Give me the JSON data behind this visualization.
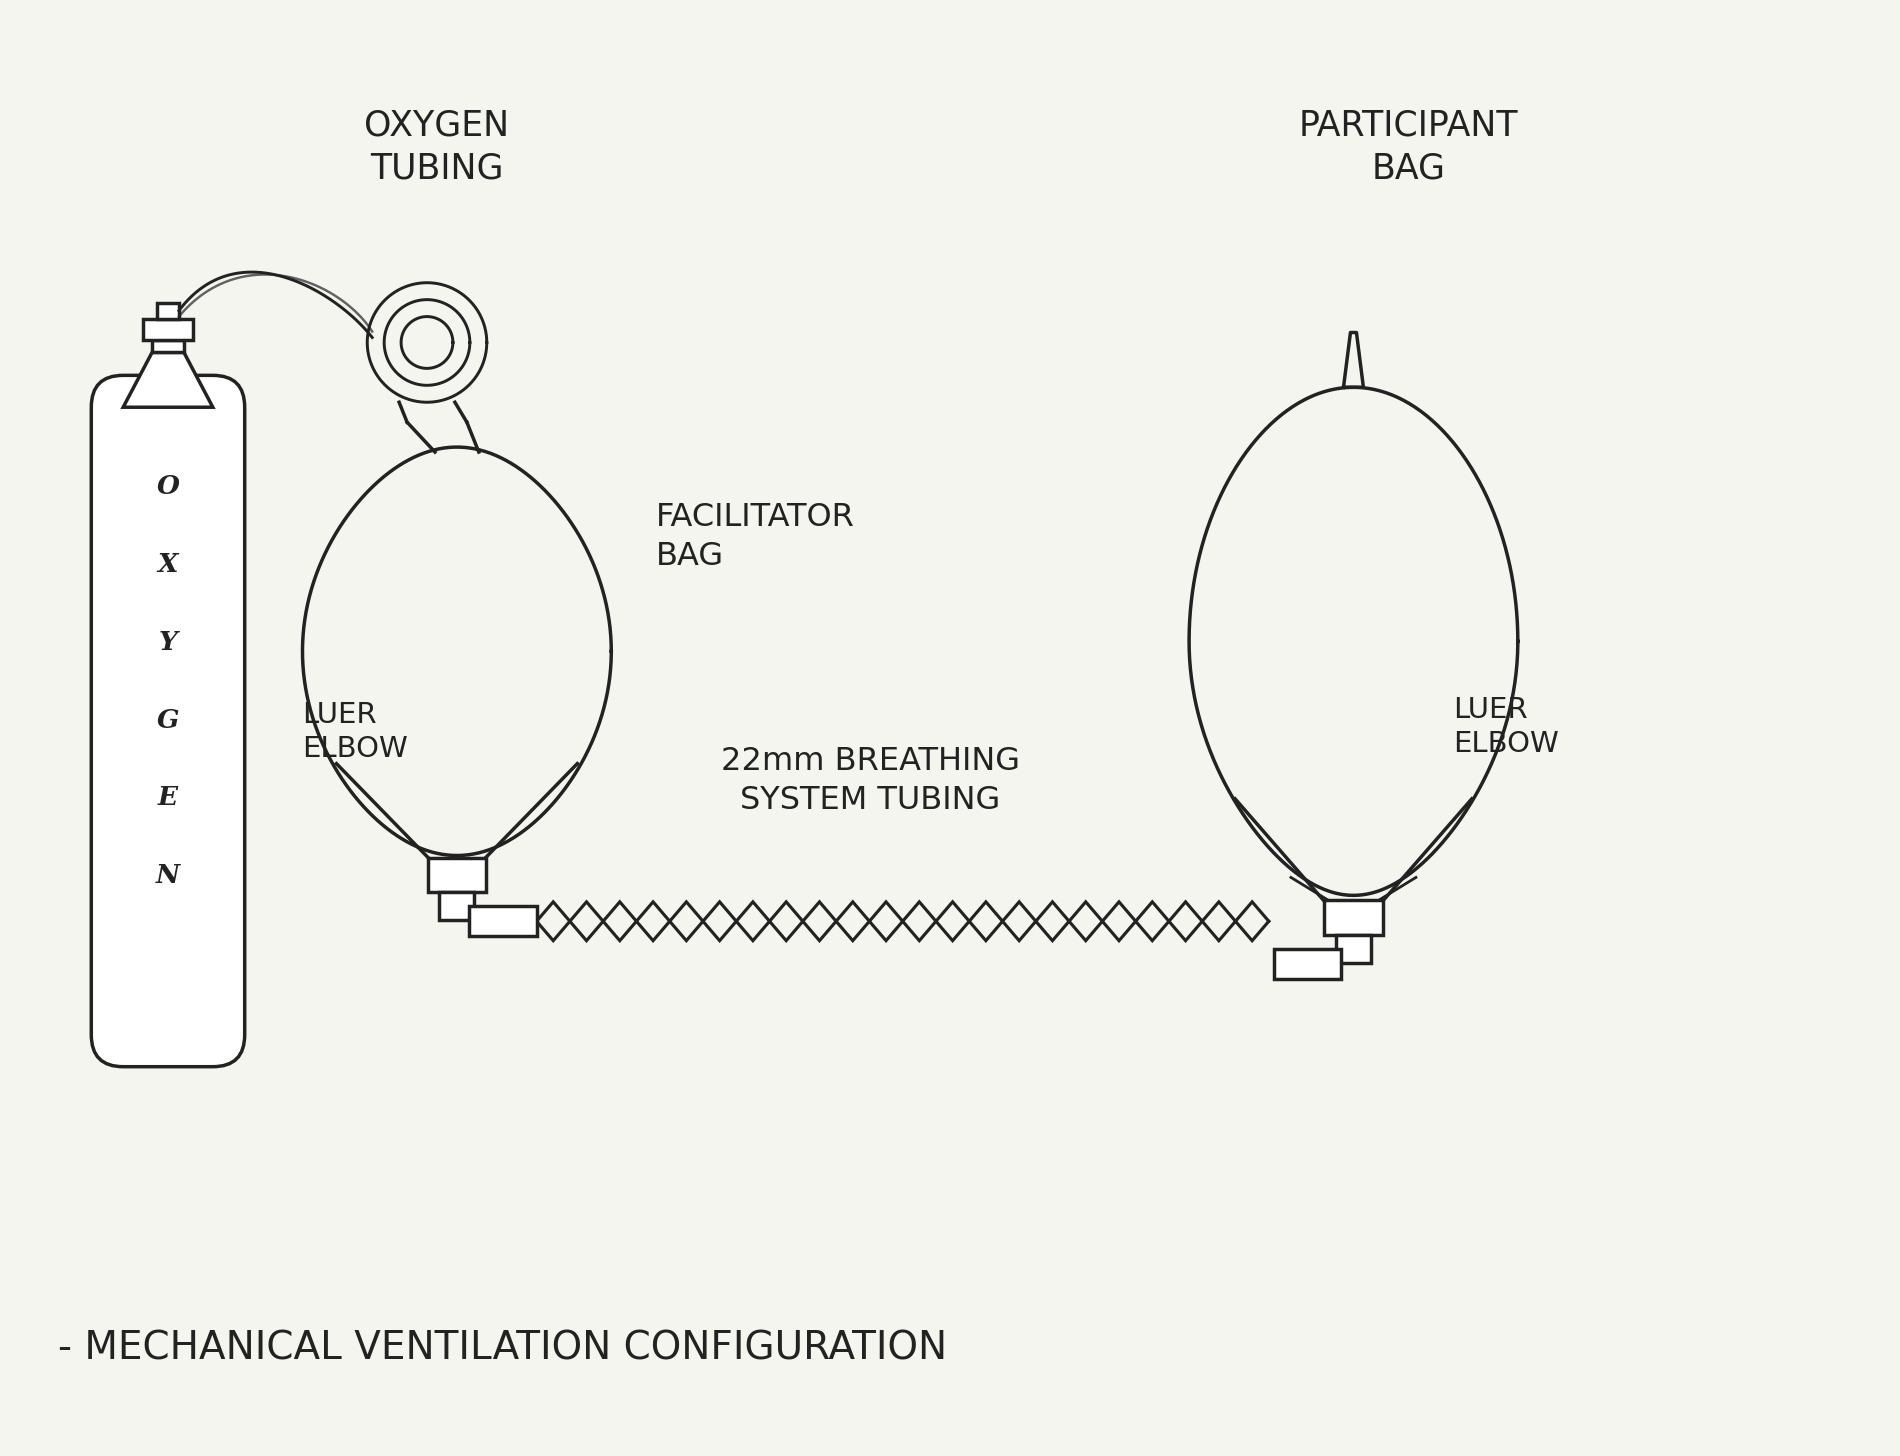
{
  "bg_color": "#f5f5f0",
  "line_color": "#222222",
  "title": "- MECHANICAL VENTILATION CONFIGURATION",
  "title_fontsize": 28,
  "labels": {
    "oxygen_tubing": "OXYGEN\nTUBING",
    "participant_bag": "PARTICIPANT\nBAG",
    "facilitator_bag": "FACILITATOR\nBAG",
    "luer_elbow_left": "LUER\nELBOW",
    "luer_elbow_right": "LUER\nELBOW",
    "breathing_tube": "22mm BREATHING\nSYSTEM TUBING",
    "oxygen_text_lines": [
      "O",
      "X",
      "Y",
      "G",
      "E",
      "N"
    ]
  }
}
